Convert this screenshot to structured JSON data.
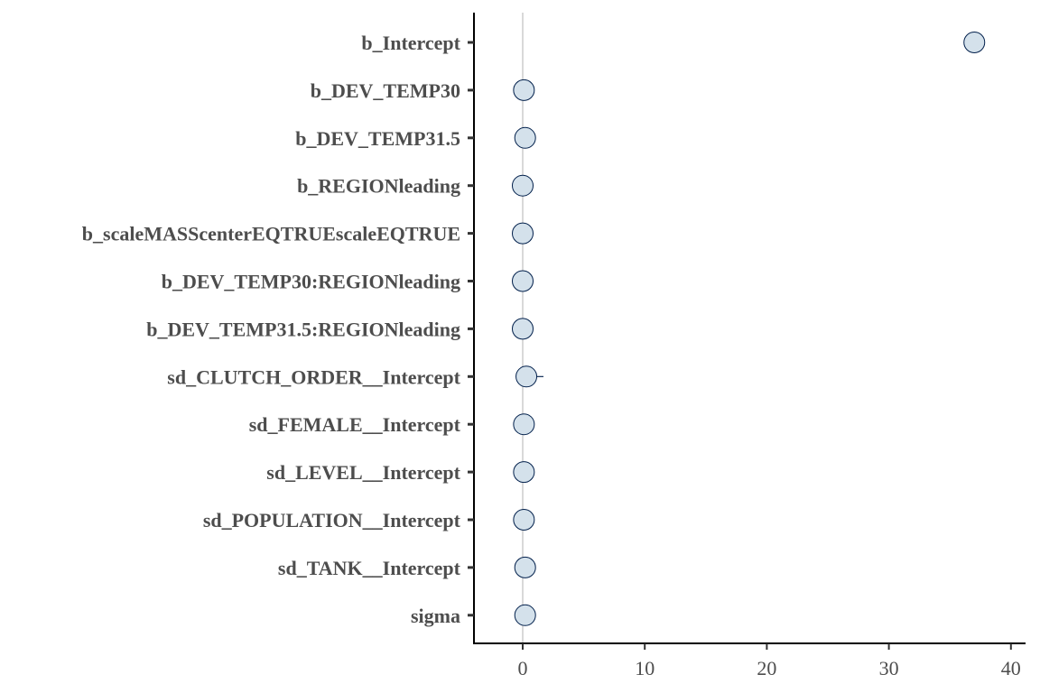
{
  "chart_data": {
    "type": "scatter",
    "title": "",
    "xlabel": "",
    "ylabel": "",
    "xlim": [
      -4,
      41
    ],
    "x_ticks": [
      0,
      10,
      20,
      30,
      40
    ],
    "x_tick_labels": [
      "0",
      "10",
      "20",
      "30",
      "40"
    ],
    "grid": "vertical line at 0",
    "categories": [
      "b_Intercept",
      "b_DEV_TEMP30",
      "b_DEV_TEMP31.5",
      "b_REGIONleading",
      "b_scaleMASScenterEQTRUEscaleEQTRUE",
      "b_DEV_TEMP30:REGIONleading",
      "b_DEV_TEMP31.5:REGIONleading",
      "sd_CLUTCH_ORDER__Intercept",
      "sd_FEMALE__Intercept",
      "sd_LEVEL__Intercept",
      "sd_POPULATION__Intercept",
      "sd_TANK__Intercept",
      "sigma"
    ],
    "values": [
      37.0,
      0.1,
      0.2,
      0.0,
      0.0,
      0.0,
      0.0,
      0.3,
      0.1,
      0.1,
      0.1,
      0.2,
      0.2
    ],
    "intervals": [
      [
        36.8,
        37.2
      ],
      [
        0.0,
        0.2
      ],
      [
        0.1,
        0.3
      ],
      [
        -0.1,
        0.1
      ],
      [
        -0.1,
        0.1
      ],
      [
        -0.1,
        0.1
      ],
      [
        -0.1,
        0.1
      ],
      [
        0.0,
        1.7
      ],
      [
        0.0,
        0.2
      ],
      [
        0.0,
        0.2
      ],
      [
        0.0,
        0.3
      ],
      [
        0.1,
        0.3
      ],
      [
        0.1,
        0.3
      ]
    ],
    "point_fill": "#d4e1eb",
    "point_stroke": "#011f4b",
    "axis_color": "#000000",
    "label_color": "#4d4d4d",
    "grid_color": "#d9d9d9"
  }
}
